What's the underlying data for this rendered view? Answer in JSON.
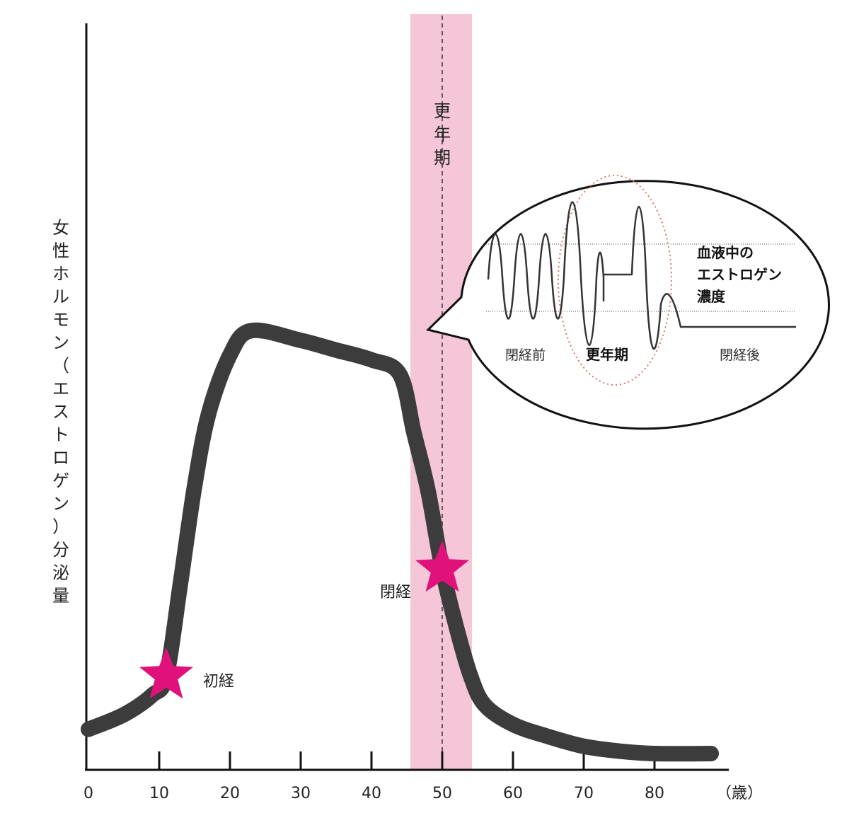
{
  "chart_data": {
    "type": "line",
    "ylabel": "女性ホルモン（エストロゲン）分泌量",
    "x_unit": "（歳）",
    "xlim": [
      0,
      90
    ],
    "ylim": [
      0,
      100
    ],
    "x_ticks": [
      0,
      10,
      20,
      30,
      40,
      50,
      60,
      70,
      80
    ],
    "series": [
      {
        "x": [
          0,
          5,
          9,
          11,
          13,
          15,
          17,
          20,
          23,
          30,
          35,
          40,
          44,
          46,
          48,
          50,
          52,
          54,
          56,
          60,
          65,
          70,
          75,
          80,
          88
        ],
        "values": [
          5,
          8,
          12,
          16,
          35,
          55,
          70,
          82,
          87,
          85,
          83,
          81,
          78,
          66,
          54,
          38,
          26,
          16,
          10,
          6,
          3.5,
          1.5,
          0.5,
          0,
          0
        ]
      }
    ],
    "band": {
      "x": [
        45.5,
        54.2
      ],
      "label": "更年期",
      "center": 50
    },
    "markers": [
      {
        "label": "初経",
        "x": 11,
        "y": 16,
        "color": "#e0117a"
      },
      {
        "label": "閉経",
        "x": 50,
        "y": 38,
        "color": "#e0117a"
      }
    ],
    "inset": {
      "title": "血液中のエストロゲン濃度",
      "title_lines": [
        "血液中の",
        "エストロゲン",
        "濃度"
      ],
      "phases": [
        "閉経前",
        "更年期",
        "閉経後"
      ]
    }
  },
  "colors": {
    "curve": "#3c3c3c",
    "band": "#f5c6d8",
    "star": "#e0117a",
    "ellipse": "#e2706a"
  }
}
